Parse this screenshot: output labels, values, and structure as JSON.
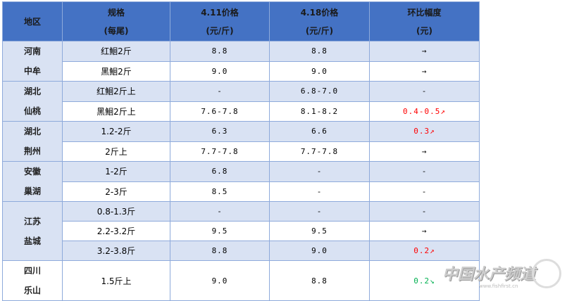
{
  "header": {
    "region": "地区",
    "spec": [
      "规格",
      "(每尾)"
    ],
    "price_411": [
      "4.11价格",
      "(元/斤)"
    ],
    "price_418": [
      "4.18价格",
      "(元/斤)"
    ],
    "change": [
      "环比幅度",
      "(元)"
    ]
  },
  "colors": {
    "header_bg": "#4472c4",
    "row_alt": "#d9e2f3",
    "border": "#8eaadb",
    "up": "#ff0000",
    "down": "#00b050"
  },
  "groups": [
    {
      "region": [
        "河南",
        "中牟"
      ],
      "rows": [
        {
          "spec": "红鮰2斤",
          "p411": "8.8",
          "p418": "8.8",
          "change": "→",
          "trend": "flat"
        },
        {
          "spec": "黑鮰2斤",
          "p411": "9.0",
          "p418": "9.0",
          "change": "→",
          "trend": "flat"
        }
      ]
    },
    {
      "region": [
        "湖北",
        "仙桃"
      ],
      "rows": [
        {
          "spec": "红鮰2斤上",
          "p411": "-",
          "p418": "6.8-7.0",
          "change": "-",
          "trend": "none"
        },
        {
          "spec": "黑鮰2斤上",
          "p411": "7.6-7.8",
          "p418": "8.1-8.2",
          "change": "0.4-0.5↗",
          "trend": "up"
        }
      ]
    },
    {
      "region": [
        "湖北",
        "荆州"
      ],
      "rows": [
        {
          "spec": "1.2-2斤",
          "p411": "6.3",
          "p418": "6.6",
          "change": "0.3↗",
          "trend": "up"
        },
        {
          "spec": "2斤上",
          "p411": "7.7-7.8",
          "p418": "7.7-7.8",
          "change": "→",
          "trend": "flat"
        }
      ]
    },
    {
      "region": [
        "安徽",
        "巢湖"
      ],
      "rows": [
        {
          "spec": "1-2斤",
          "p411": "6.8",
          "p418": "-",
          "change": "-",
          "trend": "none"
        },
        {
          "spec": "2-3斤",
          "p411": "8.5",
          "p418": "-",
          "change": "-",
          "trend": "none"
        }
      ]
    },
    {
      "region": [
        "江苏",
        "盐城"
      ],
      "rows": [
        {
          "spec": "0.8-1.3斤",
          "p411": "-",
          "p418": "-",
          "change": "-",
          "trend": "none"
        },
        {
          "spec": "2.2-3.2斤",
          "p411": "9.5",
          "p418": "9.5",
          "change": "→",
          "trend": "flat"
        },
        {
          "spec": "3.2-3.8斤",
          "p411": "8.8",
          "p418": "9.0",
          "change": "0.2↗",
          "trend": "up"
        }
      ]
    },
    {
      "region": [
        "四川",
        "乐山"
      ],
      "rows": [
        {
          "spec": "1.5斤上",
          "p411": "9.0",
          "p418": "8.8",
          "change": "0.2↘",
          "trend": "down"
        }
      ]
    }
  ],
  "watermark": {
    "text": "中国水产频道",
    "url": "www.fishfirst.cn"
  }
}
